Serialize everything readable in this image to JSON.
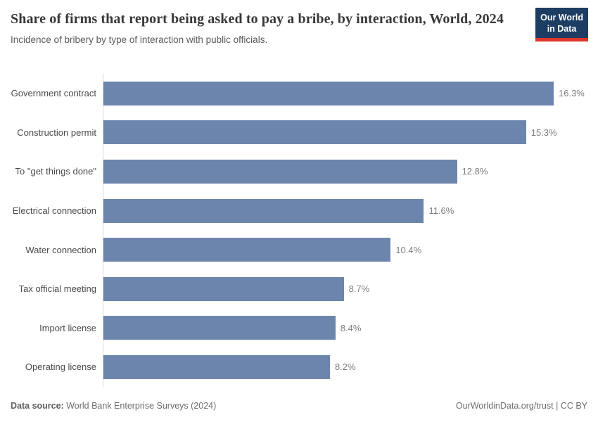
{
  "header": {
    "title": "Share of firms that report being asked to pay a bribe, by interaction, World, 2024",
    "subtitle": "Incidence of bribery by type of interaction with public officials.",
    "logo": {
      "line1": "Our World",
      "line2": "in Data"
    }
  },
  "chart_data": {
    "type": "bar",
    "orientation": "horizontal",
    "categories": [
      "Government contract",
      "Construction permit",
      "To \"get things done\"",
      "Electrical connection",
      "Water connection",
      "Tax official meeting",
      "Import license",
      "Operating license"
    ],
    "values": [
      16.3,
      15.3,
      12.8,
      11.6,
      10.4,
      8.7,
      8.4,
      8.2
    ],
    "value_labels": [
      "16.3%",
      "15.3%",
      "12.8%",
      "11.6%",
      "10.4%",
      "8.7%",
      "8.4%",
      "8.2%"
    ],
    "unit": "%",
    "xlim": [
      0,
      16.3
    ],
    "grid": false,
    "legend": "none",
    "bar_color": "#6c85ac",
    "axis_line_color": "#d9d9d9"
  },
  "footer": {
    "datasource_label": "Data source:",
    "datasource_value": " World Bank Enterprise Surveys (2024)",
    "attribution": "OurWorldinData.org/trust | CC BY"
  },
  "colors": {
    "title": "#383838",
    "subtitle": "#5b5b5b",
    "logo_bg": "#1d3d63",
    "logo_accent": "#e0362c",
    "bar": "#6c85ac"
  }
}
